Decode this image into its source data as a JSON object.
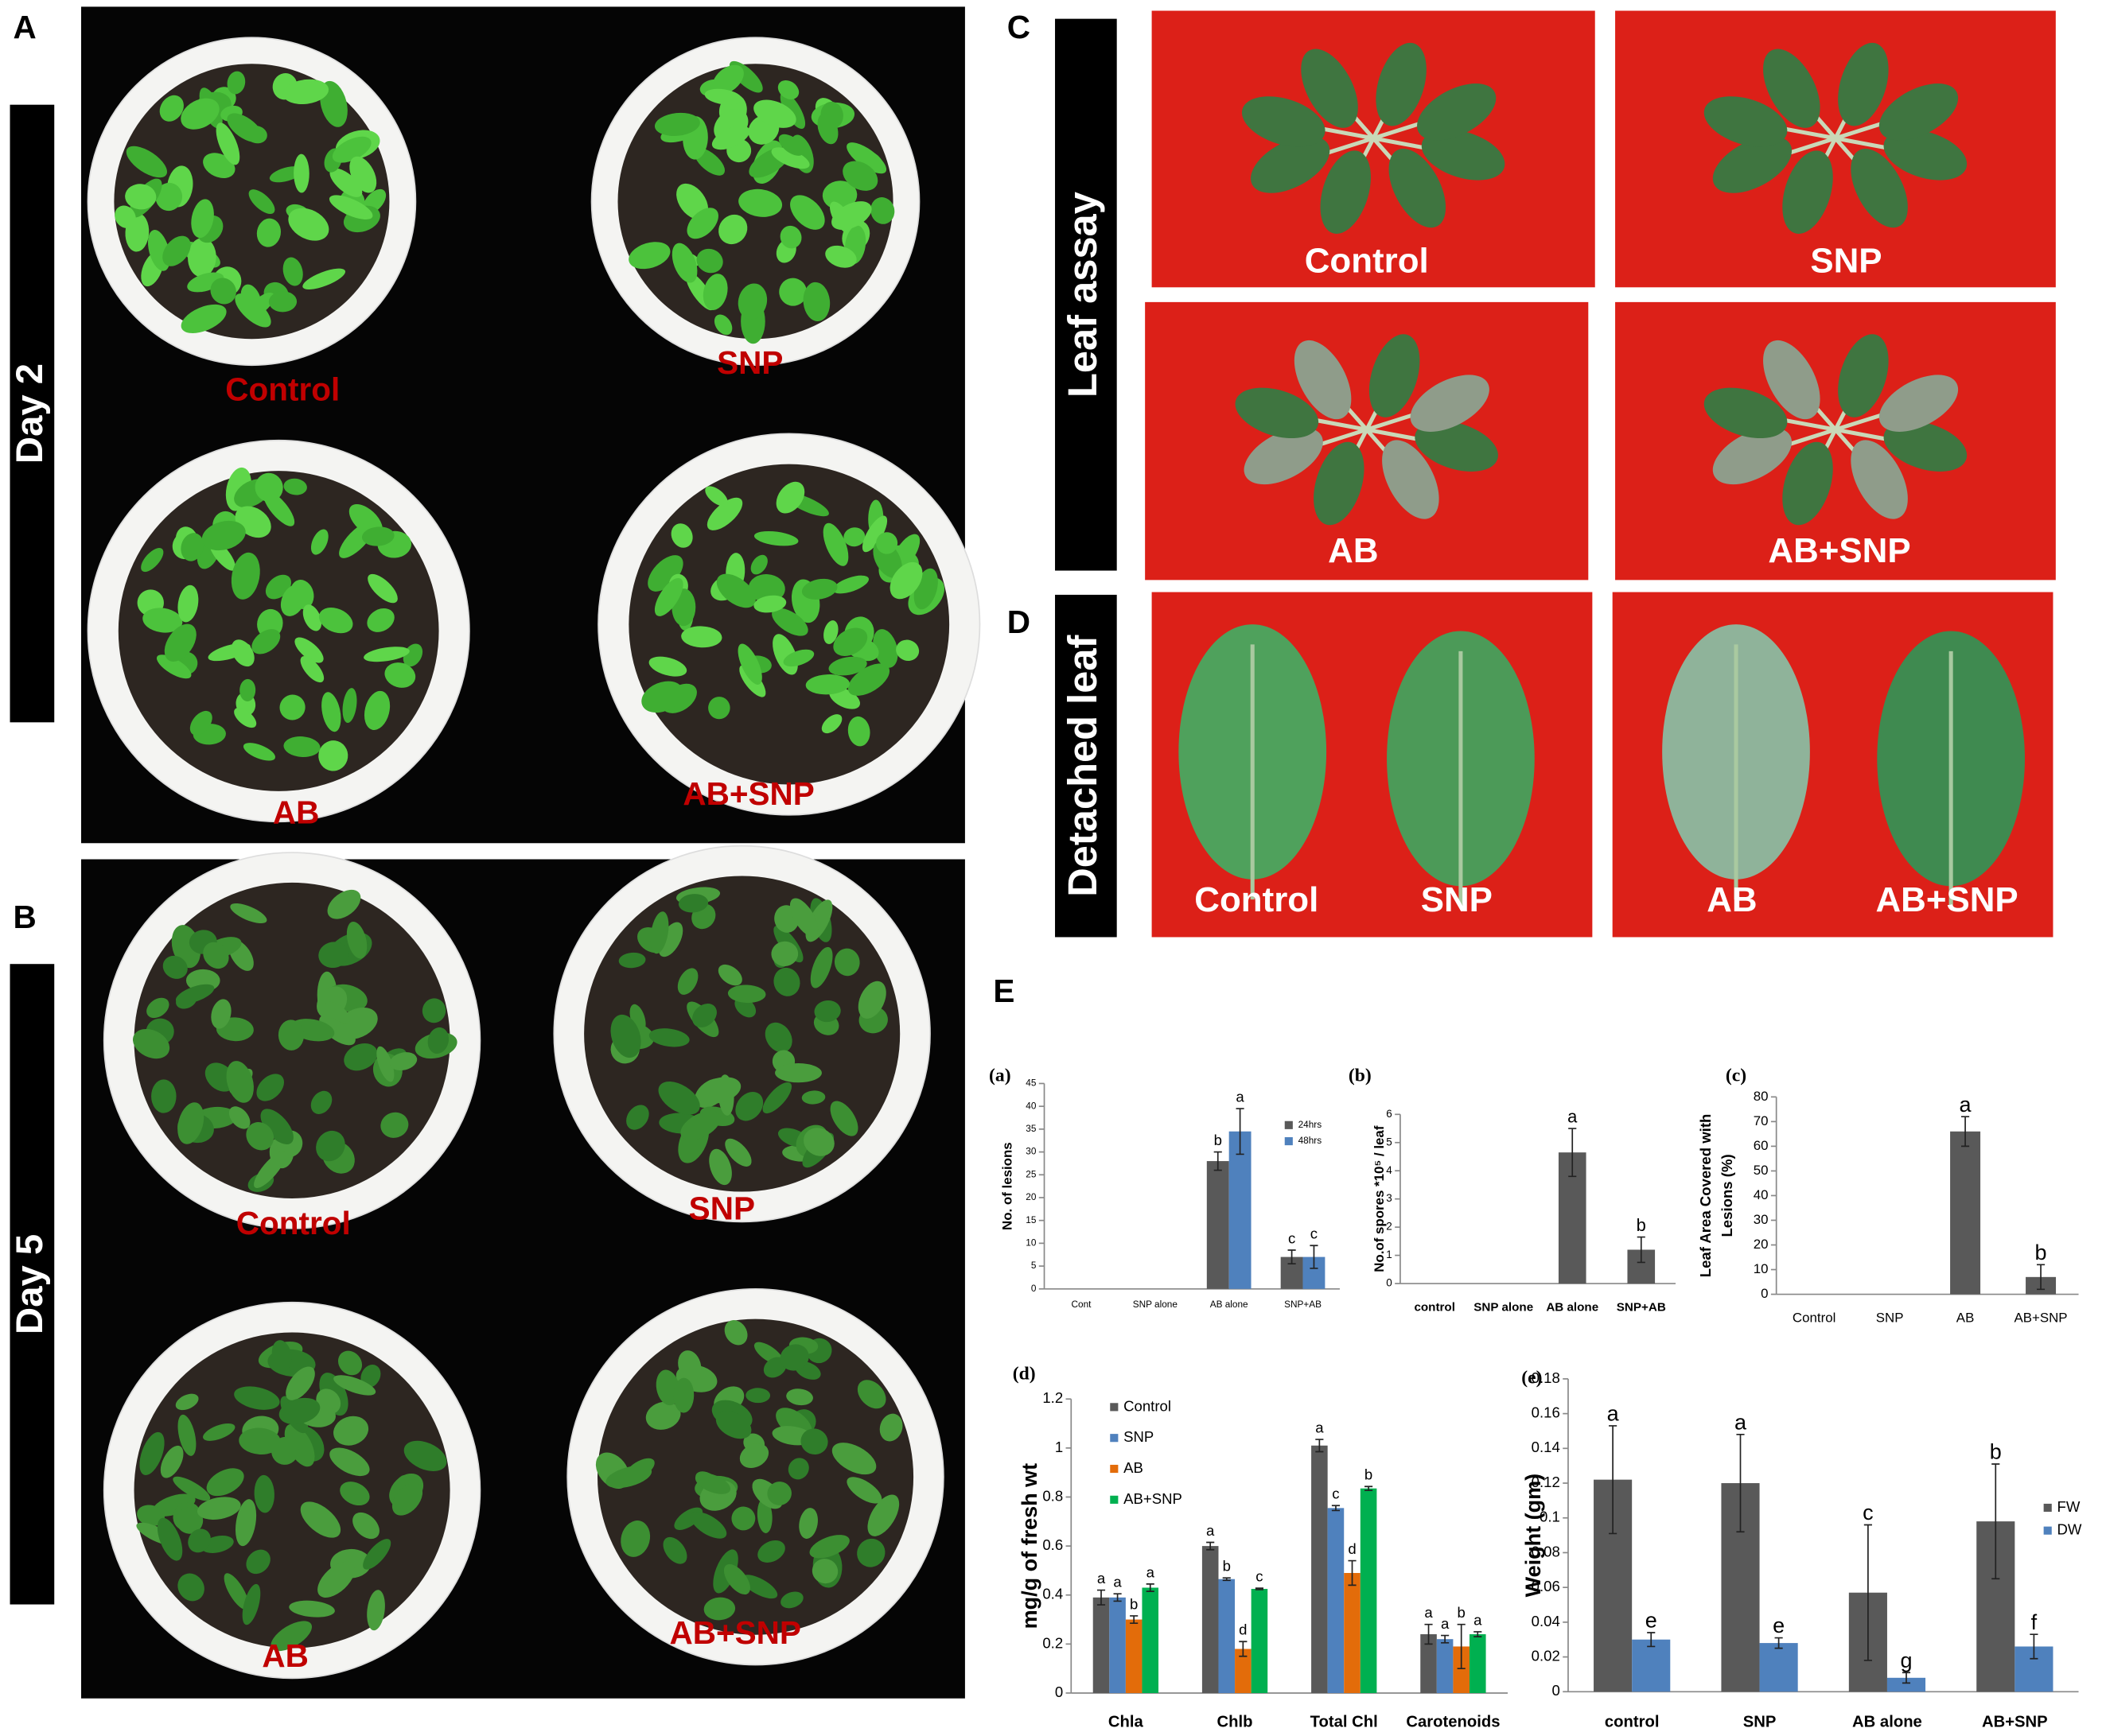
{
  "panels": {
    "A": {
      "label": "A",
      "side_label": "Day 2",
      "photo_labels": [
        "Control",
        "SNP",
        "AB",
        "AB+SNP"
      ]
    },
    "B": {
      "label": "B",
      "side_label": "Day 5",
      "photo_labels": [
        "Control",
        "SNP",
        "AB",
        "AB+SNP"
      ]
    },
    "C": {
      "label": "C",
      "side_label": "Leaf assay",
      "photo_labels": [
        "Control",
        "SNP",
        "AB",
        "AB+SNP"
      ]
    },
    "D": {
      "label": "D",
      "side_label": "Detached leaf",
      "photo_labels": [
        "Control",
        "SNP",
        "AB",
        "AB+SNP"
      ]
    },
    "E": {
      "label": "E"
    }
  },
  "chart_data": [
    {
      "type": "bar",
      "label": "(a)",
      "ylabel": "No. of lesions",
      "categories": [
        "Cont",
        "SNP alone",
        "AB alone",
        "SNP+AB"
      ],
      "series": [
        {
          "name": "24hrs",
          "color": "#595959",
          "values": [
            0,
            0,
            28,
            7
          ],
          "errors": [
            0,
            0,
            2,
            1.5
          ],
          "letters": [
            null,
            null,
            "b",
            "c"
          ]
        },
        {
          "name": "48hrs",
          "color": "#4f81bd",
          "values": [
            0,
            0,
            34.5,
            7
          ],
          "errors": [
            0,
            0,
            5,
            2.5
          ],
          "letters": [
            null,
            null,
            "a",
            "c"
          ]
        }
      ],
      "ylim": [
        0,
        45
      ],
      "yticks": [
        0,
        5,
        10,
        15,
        20,
        25,
        30,
        35,
        40,
        45
      ],
      "legend": "right"
    },
    {
      "type": "bar",
      "label": "(b)",
      "ylabel": "No.of spores *10⁵ / leaf",
      "categories": [
        "control",
        "SNP alone",
        "AB alone",
        "SNP+AB"
      ],
      "values": [
        0,
        0,
        4.65,
        1.2
      ],
      "errors": [
        0,
        0,
        0.85,
        0.45
      ],
      "letters": [
        null,
        null,
        "a",
        "b"
      ],
      "color": "#595959",
      "ylim": [
        0,
        6
      ],
      "yticks": [
        0,
        1,
        2,
        3,
        4,
        5,
        6
      ]
    },
    {
      "type": "bar",
      "label": "(c)",
      "ylabel": [
        "Leaf Area Covered with",
        "Lesions (%)"
      ],
      "categories": [
        "Control",
        "SNP",
        "AB",
        "AB+SNP"
      ],
      "values": [
        0,
        0,
        66,
        7
      ],
      "errors": [
        0,
        0,
        6,
        5
      ],
      "letters": [
        null,
        null,
        "a",
        "b"
      ],
      "color": "#595959",
      "ylim": [
        0,
        80
      ],
      "yticks": [
        0,
        10,
        20,
        30,
        40,
        50,
        60,
        70,
        80
      ]
    },
    {
      "type": "bar",
      "label": "(d)",
      "ylabel": "mg/g of fresh wt",
      "categories": [
        "Chla",
        "Chlb",
        "Total Chl",
        "Carotenoids"
      ],
      "series": [
        {
          "name": "Control",
          "color": "#595959",
          "values": [
            0.39,
            0.6,
            1.01,
            0.24
          ],
          "errors": [
            0.03,
            0.015,
            0.025,
            0.04
          ],
          "letters": [
            "a",
            "a",
            "a",
            "a"
          ]
        },
        {
          "name": "SNP",
          "color": "#4f81bd",
          "values": [
            0.39,
            0.465,
            0.755,
            0.22
          ],
          "errors": [
            0.015,
            0.005,
            0.01,
            0.015
          ],
          "letters": [
            "a",
            "b",
            "c",
            "a"
          ]
        },
        {
          "name": "AB",
          "color": "#e36c0a",
          "values": [
            0.3,
            0.18,
            0.49,
            0.19
          ],
          "errors": [
            0.015,
            0.03,
            0.05,
            0.09
          ],
          "letters": [
            "b",
            "d",
            "d",
            "b"
          ]
        },
        {
          "name": "AB+SNP",
          "color": "#00b050",
          "values": [
            0.43,
            0.425,
            0.835,
            0.24
          ],
          "errors": [
            0.015,
            0.003,
            0.008,
            0.01
          ],
          "letters": [
            "a",
            "c",
            "b",
            "a"
          ]
        }
      ],
      "ylim": [
        0,
        1.2
      ],
      "yticks": [
        0,
        0.2,
        0.4,
        0.6,
        0.8,
        1,
        1.2
      ],
      "legend": "upper left"
    },
    {
      "type": "bar",
      "label": "(e)",
      "ylabel": "Weight (gm)",
      "categories": [
        "control",
        "SNP",
        "AB alone",
        "AB+SNP"
      ],
      "series": [
        {
          "name": "FW",
          "color": "#595959",
          "values": [
            0.122,
            0.12,
            0.057,
            0.098
          ],
          "errors": [
            0.031,
            0.028,
            0.039,
            0.033
          ],
          "letters": [
            "a",
            "a",
            "c",
            "b"
          ]
        },
        {
          "name": "DW",
          "color": "#4f81bd",
          "values": [
            0.03,
            0.028,
            0.008,
            0.026
          ],
          "errors": [
            0.004,
            0.003,
            0.003,
            0.007
          ],
          "letters": [
            "e",
            "e",
            "g",
            "f"
          ]
        }
      ],
      "ylim": [
        0,
        0.18
      ],
      "yticks": [
        0,
        0.02,
        0.04,
        0.06,
        0.08,
        0.1,
        0.12,
        0.14,
        0.16,
        0.18
      ],
      "legend": "right"
    }
  ]
}
